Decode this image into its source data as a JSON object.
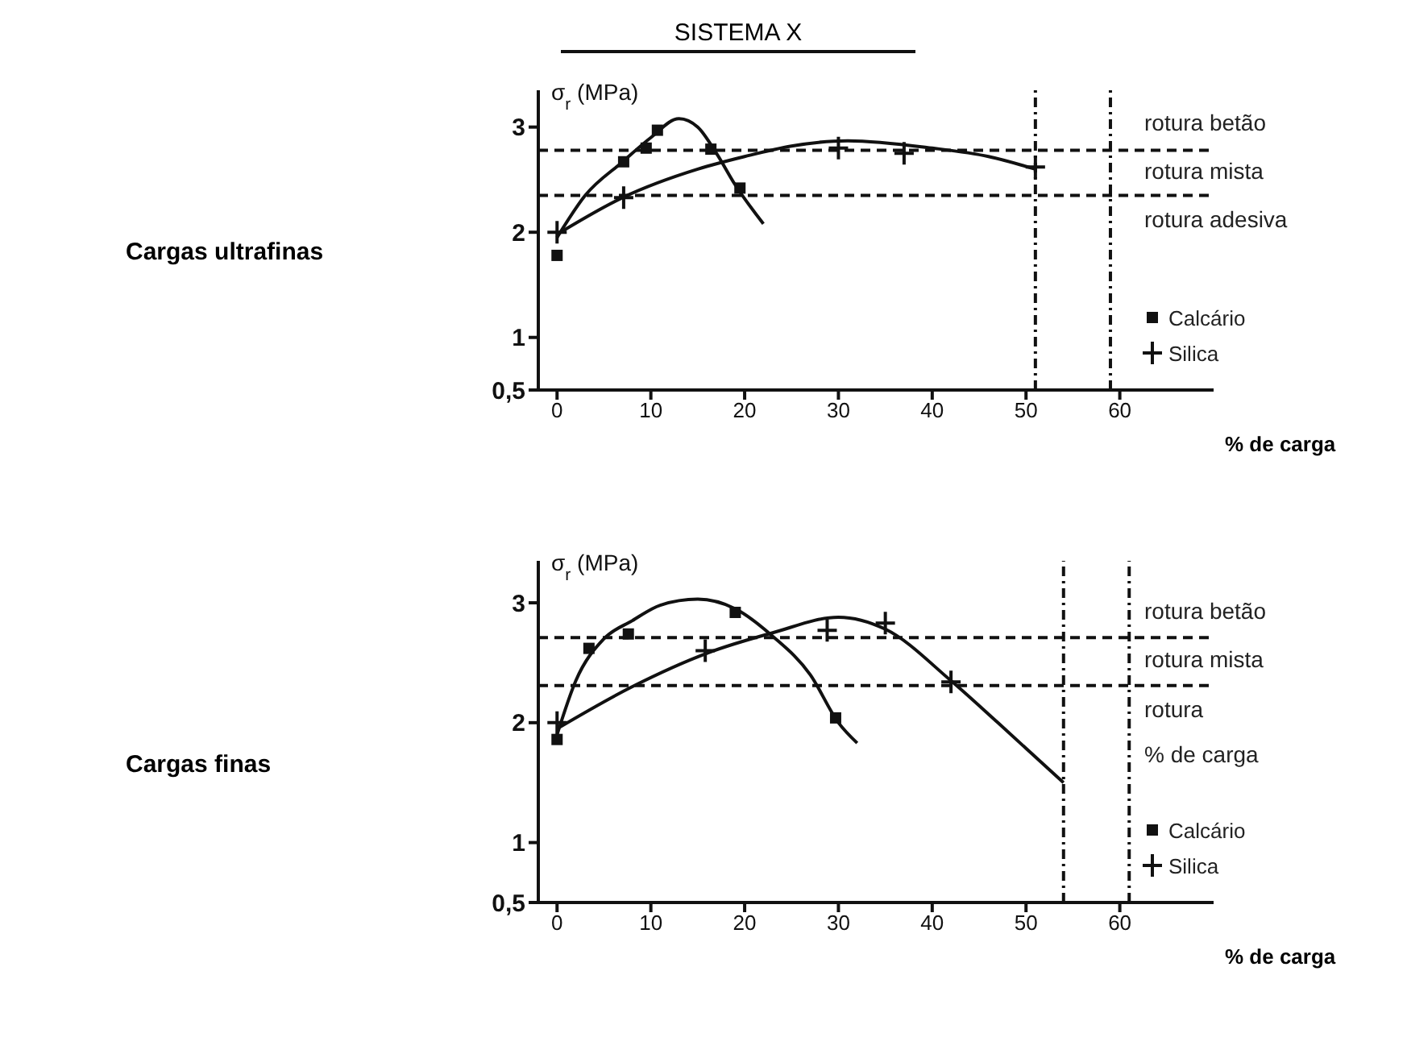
{
  "chart_data": [
    {
      "type": "scatter",
      "title": "SISTEMA X",
      "ylabel": "σ$_{r}$ (MPa)",
      "xlabel": "% de carga",
      "xlim": [
        -2,
        70
      ],
      "xticks": [
        0,
        10,
        20,
        30,
        40,
        50,
        60
      ],
      "ylim": [
        0.5,
        3.35
      ],
      "yticks": [
        {
          "value": 0.5,
          "label": "0,5"
        },
        1,
        2,
        3
      ],
      "legend": "right",
      "grid": false,
      "ref_lines": [
        {
          "axis": "y",
          "value": 2.78,
          "line_style": "dashed"
        },
        {
          "axis": "y",
          "value": 2.35,
          "line_style": "dashed"
        },
        {
          "axis": "x",
          "value": 51,
          "line_style": "dotted"
        },
        {
          "axis": "x",
          "value": 59,
          "line_style": "dotted"
        }
      ],
      "annotations": [
        "Cargas ultrafinas",
        "rotura betão",
        "rotura mista",
        "rotura adesiva"
      ],
      "series": [
        {
          "name": "Calcário",
          "marker": "square",
          "color": "#111111",
          "x": [
            0,
            7.1,
            9.5,
            10.7,
            16.4,
            19.5
          ],
          "values": [
            1.78,
            2.67,
            2.8,
            2.97,
            2.79,
            2.42
          ]
        },
        {
          "name": "Silica",
          "marker": "cross",
          "color": "#111111",
          "x": [
            0,
            7.1,
            30,
            37,
            51
          ],
          "values": [
            2.0,
            2.33,
            2.8,
            2.75,
            2.62
          ]
        },
        {
          "type": "line",
          "color": "#111111",
          "x": [
            0,
            3,
            7,
            10,
            13,
            15,
            17,
            19,
            22
          ],
          "values": [
            1.95,
            2.35,
            2.67,
            2.9,
            3.08,
            3.0,
            2.75,
            2.45,
            2.08
          ]
        },
        {
          "type": "line",
          "color": "#111111",
          "x": [
            0,
            7,
            15,
            20,
            25,
            31,
            40,
            46,
            51
          ],
          "values": [
            1.98,
            2.33,
            2.6,
            2.72,
            2.82,
            2.87,
            2.8,
            2.72,
            2.6
          ]
        }
      ]
    },
    {
      "type": "scatter",
      "ylabel": "σ$_{r}$ (MPa)",
      "xlabel": "% de carga",
      "xlim": [
        -2,
        70
      ],
      "xticks": [
        0,
        10,
        20,
        30,
        40,
        50,
        60
      ],
      "ylim": [
        0.5,
        3.35
      ],
      "yticks": [
        {
          "value": 0.5,
          "label": "0,5"
        },
        1,
        2,
        3
      ],
      "legend": "right",
      "grid": false,
      "ref_lines": [
        {
          "axis": "y",
          "value": 2.71,
          "line_style": "dashed"
        },
        {
          "axis": "y",
          "value": 2.31,
          "line_style": "dashed"
        },
        {
          "axis": "x",
          "value": 54,
          "line_style": "dotted"
        },
        {
          "axis": "x",
          "value": 61,
          "line_style": "dotted"
        }
      ],
      "annotations": [
        "Cargas finas",
        "rotura betão",
        "rotura mista",
        "rotura",
        "% de carga"
      ],
      "series": [
        {
          "name": "Calcário",
          "marker": "square",
          "color": "#111111",
          "x": [
            0,
            3.4,
            7.6,
            19,
            29.7
          ],
          "values": [
            1.86,
            2.62,
            2.74,
            2.92,
            2.04
          ]
        },
        {
          "name": "Silica",
          "marker": "cross",
          "color": "#111111",
          "x": [
            0,
            15.8,
            28.8,
            35,
            42
          ],
          "values": [
            2.0,
            2.6,
            2.77,
            2.83,
            2.34
          ]
        },
        {
          "type": "line",
          "color": "#111111",
          "x": [
            0,
            2,
            5,
            8,
            11,
            15,
            19,
            23,
            27,
            30,
            32
          ],
          "values": [
            1.9,
            2.35,
            2.7,
            2.85,
            2.98,
            3.03,
            2.95,
            2.72,
            2.4,
            2.0,
            1.83
          ]
        },
        {
          "type": "line",
          "color": "#111111",
          "x": [
            0,
            8,
            16,
            23,
            30,
            35,
            42,
            47,
            54
          ],
          "values": [
            1.95,
            2.3,
            2.58,
            2.75,
            2.88,
            2.78,
            2.35,
            2.0,
            1.5
          ]
        }
      ]
    }
  ]
}
